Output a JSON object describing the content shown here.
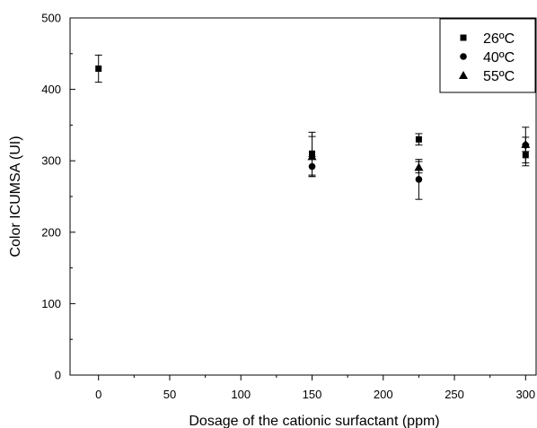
{
  "chart_data": {
    "type": "scatter",
    "xlabel": "Dosage of the cationic surfactant (ppm)",
    "ylabel": "Color ICUMSA (UI)",
    "xlim": [
      -20,
      308
    ],
    "ylim": [
      0,
      500
    ],
    "xticks": [
      0,
      50,
      100,
      150,
      200,
      250,
      300
    ],
    "yticks": [
      0,
      100,
      200,
      300,
      400,
      500
    ],
    "grid": false,
    "legend_position": "top-right",
    "series": [
      {
        "name": "26ºC",
        "marker": "square",
        "color": "#000000",
        "points": [
          {
            "x": 0,
            "y": 429,
            "err": 19
          },
          {
            "x": 150,
            "y": 310,
            "err": 30
          },
          {
            "x": 225,
            "y": 330,
            "err": 8
          },
          {
            "x": 300,
            "y": 308,
            "err": 15
          }
        ]
      },
      {
        "name": "40ºC",
        "marker": "circle",
        "color": "#000000",
        "points": [
          {
            "x": 150,
            "y": 292,
            "err": 14
          },
          {
            "x": 225,
            "y": 274,
            "err": 28
          },
          {
            "x": 300,
            "y": 322,
            "err": 25
          }
        ]
      },
      {
        "name": "55ºC",
        "marker": "triangle",
        "color": "#000000",
        "points": [
          {
            "x": 150,
            "y": 306,
            "err": 28
          },
          {
            "x": 225,
            "y": 291,
            "err": 8
          },
          {
            "x": 300,
            "y": 323,
            "err": 10
          }
        ]
      }
    ]
  }
}
